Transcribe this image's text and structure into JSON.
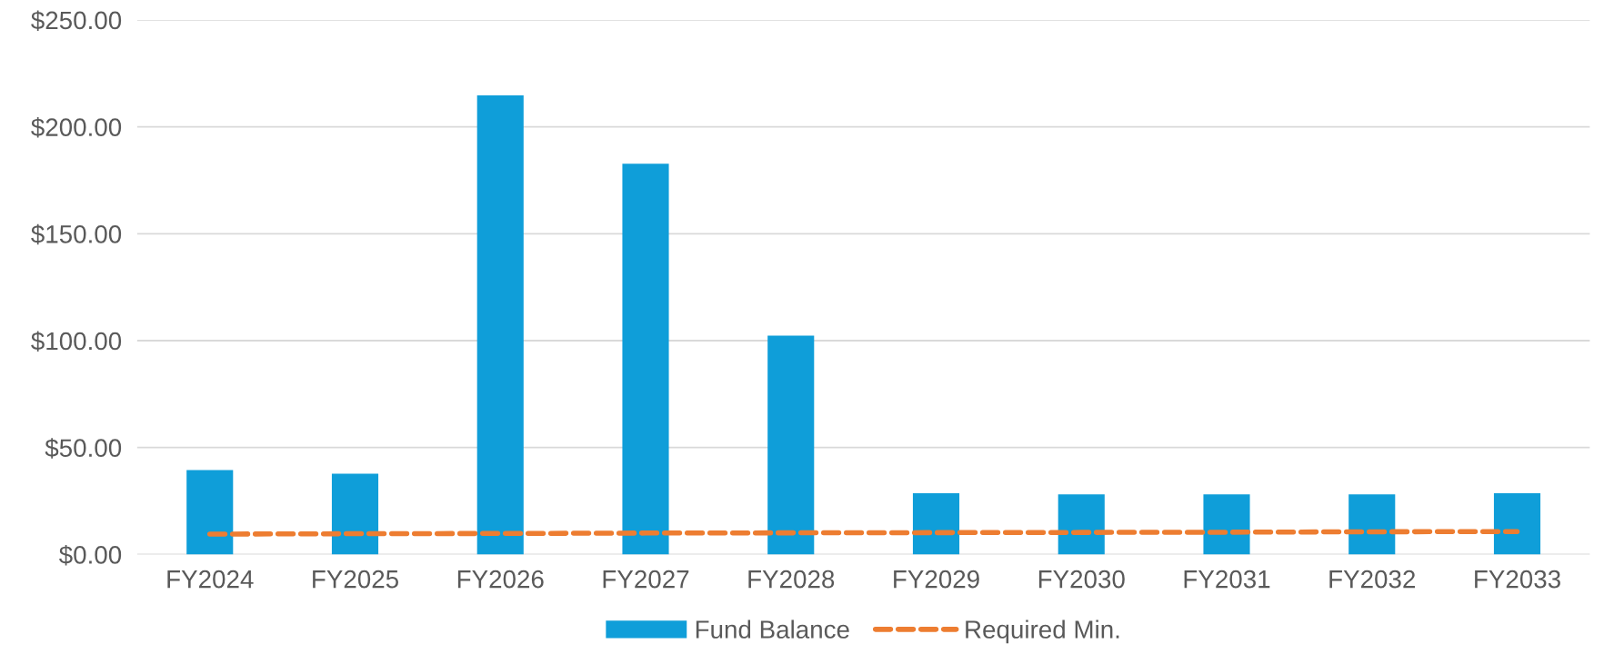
{
  "chart_data": {
    "type": "bar",
    "categories": [
      "FY2024",
      "FY2025",
      "FY2026",
      "FY2027",
      "FY2028",
      "FY2029",
      "FY2030",
      "FY2031",
      "FY2032",
      "FY2033"
    ],
    "series": [
      {
        "name": "Fund Balance",
        "color": "#0f9ed9",
        "values": [
          39.5,
          37.8,
          214.7,
          182.7,
          102.3,
          28.6,
          28.1,
          28.1,
          28.1,
          28.6
        ]
      },
      {
        "name": "Required Min.",
        "type": "line",
        "color": "#ed7d31",
        "line_style": "dashed",
        "marker": "none",
        "values": [
          9.5,
          9.7,
          9.8,
          10.0,
          10.1,
          10.2,
          10.3,
          10.4,
          10.6,
          10.7
        ]
      }
    ],
    "ylim": [
      0,
      250
    ],
    "yticks": [
      {
        "value": 0,
        "label": "$0.00"
      },
      {
        "value": 50,
        "label": "$50.00"
      },
      {
        "value": 100,
        "label": "$100.00"
      },
      {
        "value": 150,
        "label": "$150.00"
      },
      {
        "value": 200,
        "label": "$200.00"
      },
      {
        "value": 250,
        "label": "$250.00"
      }
    ],
    "grid": "y",
    "legend": "bottom"
  }
}
